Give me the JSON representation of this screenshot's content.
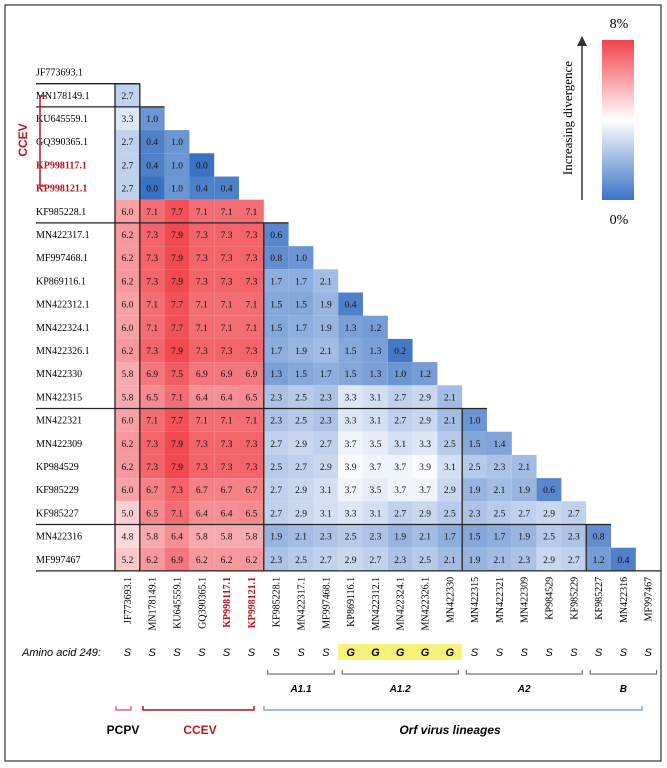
{
  "labels": [
    "JF773693.1",
    "MN178149.1",
    "KU645559.1",
    "GQ390365.1",
    "KP998117.1",
    "KP998121.1",
    "KF985228.1",
    "MN422317.1",
    "MF997468.1",
    "KP869116.1",
    "MN422312.1",
    "MN422324.1",
    "MN422326.1",
    "MN422330",
    "MN422315",
    "MN422321",
    "MN422309",
    "KP984529",
    "KF985229",
    "KF985227",
    "MN422316",
    "MF997467"
  ],
  "highlight_labels": [
    "KP998117.1",
    "KP998121.1"
  ],
  "groups": {
    "ccev_side_label": "CCEV",
    "bottom": [
      {
        "name": "PCPV"
      },
      {
        "name": "CCEV"
      },
      {
        "name": "Orf virus lineages"
      }
    ],
    "sub": [
      "A1.1",
      "A1.2",
      "A2",
      "B"
    ]
  },
  "amino_acid": {
    "label": "Amino acid 249:",
    "residues": [
      "S",
      "S",
      "S",
      "S",
      "S",
      "S",
      "S",
      "S",
      "S",
      "G",
      "G",
      "G",
      "G",
      "G",
      "S",
      "S",
      "S",
      "S",
      "S",
      "S",
      "S",
      "S"
    ]
  },
  "legend": {
    "max": "8%",
    "min": "0%",
    "caption": "Increasing divergence",
    "colors": {
      "high": "#f0444c",
      "mid": "#ffffff",
      "low": "#3b72c4"
    }
  },
  "colors": {
    "highlight_text": "#c0141c",
    "ccev": "#c0141c",
    "pcpv": "#e86a6a",
    "orf": "#7aa6d0",
    "aa_highlight": "#f6f27a"
  },
  "matrix": [
    [],
    [
      2.7
    ],
    [
      3.3,
      1.0
    ],
    [
      2.7,
      0.4,
      1.0
    ],
    [
      2.7,
      0.4,
      1.0,
      0.0
    ],
    [
      2.7,
      0.0,
      1.0,
      0.4,
      0.4
    ],
    [
      6.0,
      7.1,
      7.7,
      7.1,
      7.1,
      7.1
    ],
    [
      6.2,
      7.3,
      7.9,
      7.3,
      7.3,
      7.3,
      0.6
    ],
    [
      6.2,
      7.3,
      7.9,
      7.3,
      7.3,
      7.3,
      0.8,
      1.0
    ],
    [
      6.2,
      7.3,
      7.9,
      7.3,
      7.3,
      7.3,
      1.7,
      1.7,
      2.1
    ],
    [
      6.0,
      7.1,
      7.7,
      7.1,
      7.1,
      7.1,
      1.5,
      1.5,
      1.9,
      0.4
    ],
    [
      6.0,
      7.1,
      7.7,
      7.1,
      7.1,
      7.1,
      1.5,
      1.7,
      1.9,
      1.3,
      1.2
    ],
    [
      6.2,
      7.3,
      7.9,
      7.3,
      7.3,
      7.3,
      1.7,
      1.9,
      2.1,
      1.5,
      1.3,
      0.2
    ],
    [
      5.8,
      6.9,
      7.5,
      6.9,
      6.9,
      6.9,
      1.3,
      1.5,
      1.7,
      1.5,
      1.3,
      1.0,
      1.2
    ],
    [
      5.8,
      6.5,
      7.1,
      6.4,
      6.4,
      6.5,
      2.3,
      2.5,
      2.3,
      3.3,
      3.1,
      2.7,
      2.9,
      2.1
    ],
    [
      6.0,
      7.1,
      7.7,
      7.1,
      7.1,
      7.1,
      2.3,
      2.5,
      2.3,
      3.3,
      3.1,
      2.7,
      2.9,
      2.1,
      1.0
    ],
    [
      6.2,
      7.3,
      7.9,
      7.3,
      7.3,
      7.3,
      2.7,
      2.9,
      2.7,
      3.7,
      3.5,
      3.1,
      3.3,
      2.5,
      1.5,
      1.4
    ],
    [
      6.2,
      7.3,
      7.9,
      7.3,
      7.3,
      7.3,
      2.5,
      2.7,
      2.9,
      3.9,
      3.7,
      3.7,
      3.9,
      3.1,
      2.5,
      2.3,
      2.1
    ],
    [
      6.0,
      6.7,
      7.3,
      6.7,
      6.7,
      6.7,
      2.7,
      2.9,
      3.1,
      3.7,
      3.5,
      3.7,
      3.7,
      2.9,
      1.9,
      2.1,
      1.9,
      0.6
    ],
    [
      5.0,
      6.5,
      7.1,
      6.4,
      6.4,
      6.5,
      2.7,
      2.9,
      3.1,
      3.3,
      3.1,
      2.7,
      2.9,
      2.5,
      2.3,
      2.5,
      2.7,
      2.9,
      2.7
    ],
    [
      4.8,
      5.8,
      6.4,
      5.8,
      5.8,
      5.8,
      1.9,
      2.1,
      2.3,
      2.5,
      2.3,
      1.9,
      2.1,
      1.7,
      1.5,
      1.7,
      1.9,
      2.5,
      2.3,
      0.8
    ],
    [
      5.2,
      6.2,
      6.9,
      6.2,
      6.2,
      6.2,
      2.3,
      2.5,
      2.7,
      2.9,
      2.7,
      2.3,
      2.5,
      2.1,
      1.9,
      2.1,
      2.3,
      2.9,
      2.7,
      1.2,
      0.4
    ]
  ]
}
